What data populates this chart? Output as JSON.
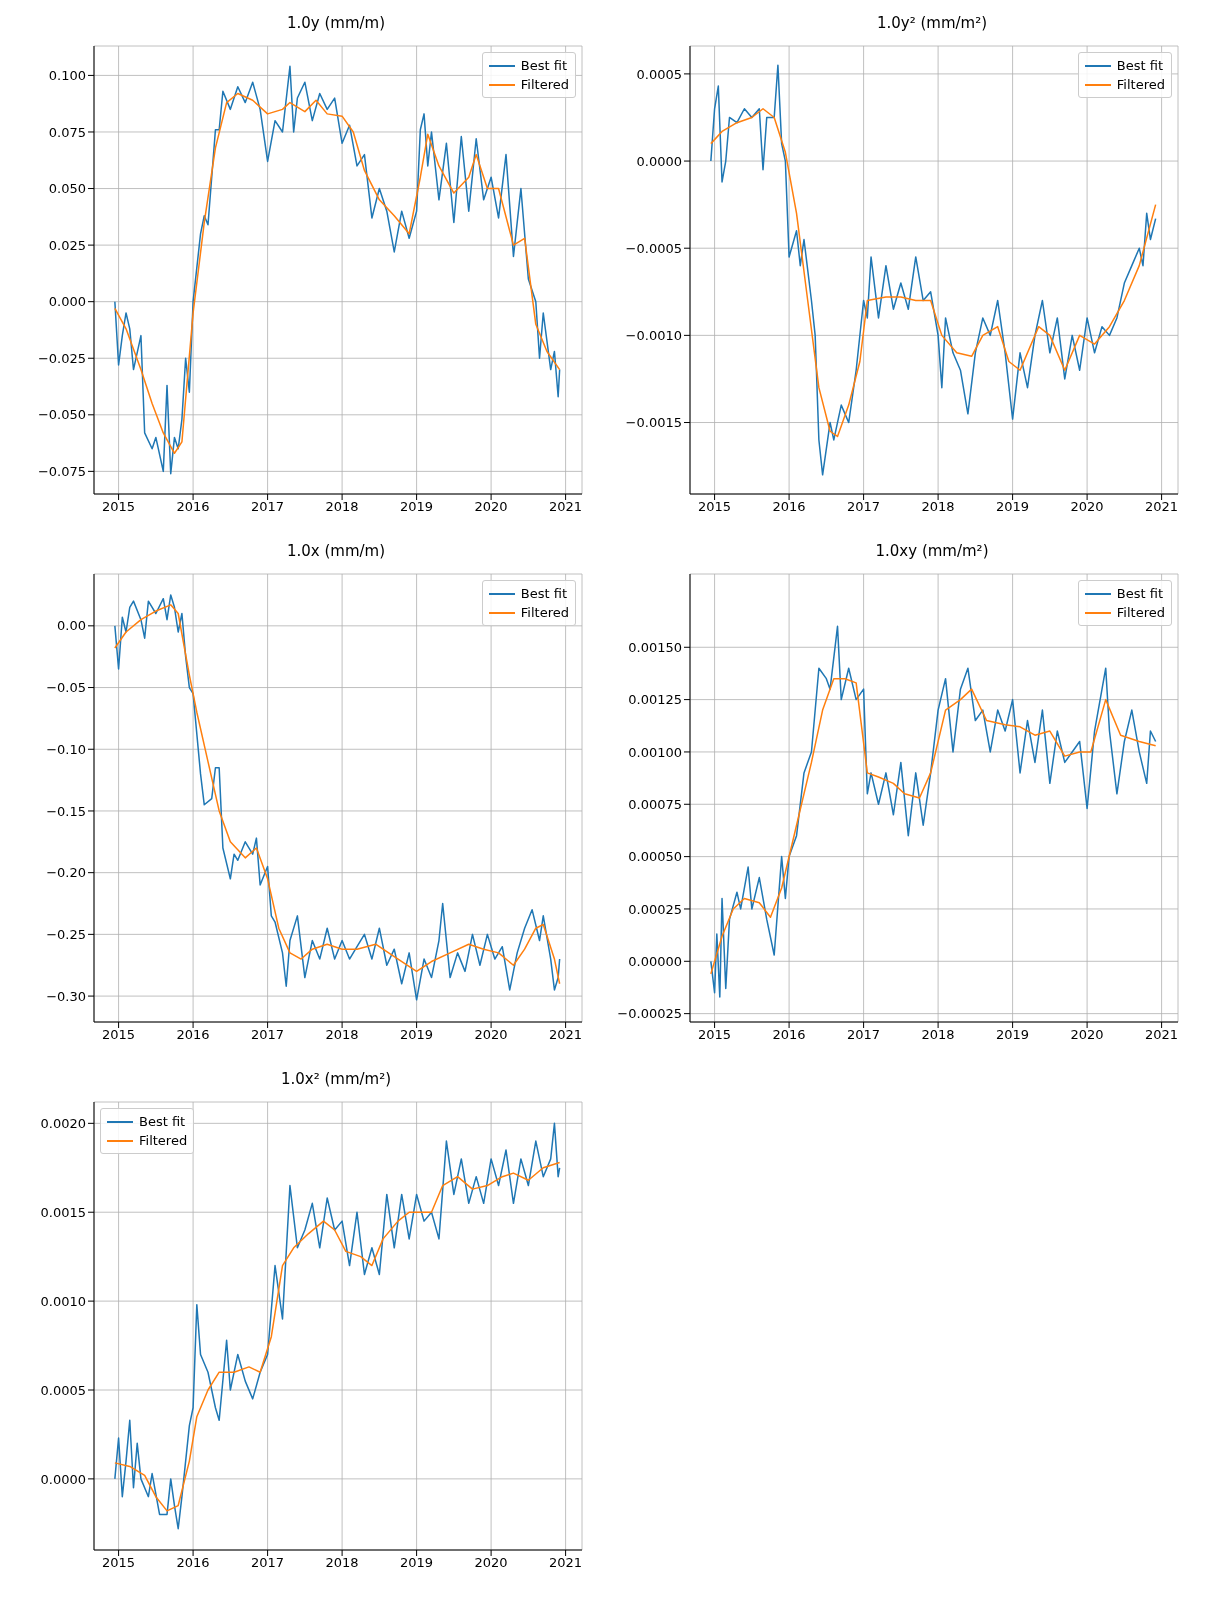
{
  "chart_data": [
    {
      "type": "line",
      "title": "1.0y (mm/m)",
      "xlim": [
        2014.67,
        2021.22
      ],
      "xticks": [
        2015,
        2016,
        2017,
        2018,
        2019,
        2020,
        2021
      ],
      "ylim": [
        -0.085,
        0.113
      ],
      "yticks": [
        {
          "value": -0.075,
          "label": "−0.075"
        },
        {
          "value": -0.05,
          "label": "−0.050"
        },
        {
          "value": -0.025,
          "label": "−0.025"
        },
        {
          "value": 0,
          "label": "0.000"
        },
        {
          "value": 0.025,
          "label": "0.025"
        },
        {
          "value": 0.05,
          "label": "0.050"
        },
        {
          "value": 0.075,
          "label": "0.075"
        },
        {
          "value": 0.1,
          "label": "0.100"
        }
      ],
      "grid": true,
      "legend": "top right",
      "line_style": "solid",
      "marker": "none",
      "series": [
        {
          "name": "Best fit",
          "color": "#1f77b4",
          "x": [
            2014.95,
            2015.0,
            2015.05,
            2015.1,
            2015.15,
            2015.2,
            2015.3,
            2015.35,
            2015.45,
            2015.5,
            2015.6,
            2015.65,
            2015.7,
            2015.75,
            2015.8,
            2015.85,
            2015.9,
            2015.95,
            2016.0,
            2016.1,
            2016.15,
            2016.2,
            2016.3,
            2016.35,
            2016.4,
            2016.5,
            2016.6,
            2016.7,
            2016.8,
            2016.9,
            2017.0,
            2017.1,
            2017.2,
            2017.3,
            2017.35,
            2017.4,
            2017.5,
            2017.6,
            2017.7,
            2017.8,
            2017.9,
            2018.0,
            2018.1,
            2018.2,
            2018.3,
            2018.4,
            2018.5,
            2018.6,
            2018.7,
            2018.8,
            2018.9,
            2019.0,
            2019.05,
            2019.1,
            2019.15,
            2019.2,
            2019.3,
            2019.4,
            2019.5,
            2019.6,
            2019.7,
            2019.8,
            2019.9,
            2020.0,
            2020.1,
            2020.2,
            2020.3,
            2020.4,
            2020.5,
            2020.6,
            2020.65,
            2020.7,
            2020.8,
            2020.85,
            2020.9,
            2020.92
          ],
          "values": [
            0.0,
            -0.028,
            -0.015,
            -0.005,
            -0.012,
            -0.03,
            -0.015,
            -0.058,
            -0.065,
            -0.06,
            -0.075,
            -0.037,
            -0.076,
            -0.06,
            -0.065,
            -0.052,
            -0.025,
            -0.04,
            0.0,
            0.03,
            0.038,
            0.034,
            0.076,
            0.076,
            0.093,
            0.085,
            0.095,
            0.088,
            0.097,
            0.085,
            0.062,
            0.08,
            0.075,
            0.104,
            0.075,
            0.09,
            0.097,
            0.08,
            0.092,
            0.085,
            0.09,
            0.07,
            0.078,
            0.06,
            0.065,
            0.037,
            0.05,
            0.04,
            0.022,
            0.04,
            0.028,
            0.04,
            0.076,
            0.083,
            0.06,
            0.075,
            0.045,
            0.07,
            0.035,
            0.073,
            0.04,
            0.072,
            0.045,
            0.055,
            0.037,
            0.065,
            0.02,
            0.05,
            0.01,
            0.0,
            -0.025,
            -0.005,
            -0.03,
            -0.022,
            -0.042,
            -0.03
          ]
        },
        {
          "name": "Filtered",
          "color": "#ff7f0e",
          "x": [
            2014.95,
            2015.1,
            2015.3,
            2015.45,
            2015.6,
            2015.75,
            2015.85,
            2016.0,
            2016.15,
            2016.3,
            2016.45,
            2016.6,
            2016.8,
            2017.0,
            2017.2,
            2017.3,
            2017.5,
            2017.65,
            2017.8,
            2018.0,
            2018.15,
            2018.3,
            2018.5,
            2018.7,
            2018.9,
            2019.05,
            2019.15,
            2019.3,
            2019.5,
            2019.7,
            2019.8,
            2019.95,
            2020.1,
            2020.3,
            2020.45,
            2020.6,
            2020.75,
            2020.92
          ],
          "values": [
            -0.003,
            -0.012,
            -0.03,
            -0.045,
            -0.058,
            -0.067,
            -0.062,
            -0.005,
            0.035,
            0.068,
            0.088,
            0.092,
            0.089,
            0.083,
            0.085,
            0.088,
            0.084,
            0.089,
            0.083,
            0.082,
            0.075,
            0.058,
            0.045,
            0.038,
            0.03,
            0.055,
            0.074,
            0.06,
            0.048,
            0.055,
            0.065,
            0.05,
            0.05,
            0.025,
            0.028,
            -0.01,
            -0.022,
            -0.03
          ]
        }
      ]
    },
    {
      "type": "line",
      "title": "1.0y² (mm/m²)",
      "xlim": [
        2014.67,
        2021.22
      ],
      "xticks": [
        2015,
        2016,
        2017,
        2018,
        2019,
        2020,
        2021
      ],
      "ylim": [
        -0.00191,
        0.00066
      ],
      "yticks": [
        {
          "value": -0.0015,
          "label": "−0.0015"
        },
        {
          "value": -0.001,
          "label": "−0.0010"
        },
        {
          "value": -0.0005,
          "label": "−0.0005"
        },
        {
          "value": 0,
          "label": "0.0000"
        },
        {
          "value": 0.0005,
          "label": "0.0005"
        }
      ],
      "grid": true,
      "legend": "top right",
      "line_style": "solid",
      "marker": "none",
      "series": [
        {
          "name": "Best fit",
          "color": "#1f77b4",
          "x": [
            2014.95,
            2015.0,
            2015.05,
            2015.1,
            2015.15,
            2015.2,
            2015.3,
            2015.4,
            2015.5,
            2015.6,
            2015.65,
            2015.7,
            2015.8,
            2015.85,
            2015.9,
            2015.95,
            2016.0,
            2016.1,
            2016.15,
            2016.2,
            2016.3,
            2016.35,
            2016.4,
            2016.45,
            2016.55,
            2016.6,
            2016.7,
            2016.8,
            2016.9,
            2017.0,
            2017.05,
            2017.1,
            2017.2,
            2017.3,
            2017.4,
            2017.5,
            2017.6,
            2017.7,
            2017.8,
            2017.9,
            2018.0,
            2018.05,
            2018.1,
            2018.2,
            2018.3,
            2018.4,
            2018.5,
            2018.6,
            2018.7,
            2018.8,
            2018.9,
            2019.0,
            2019.1,
            2019.2,
            2019.3,
            2019.4,
            2019.5,
            2019.6,
            2019.7,
            2019.8,
            2019.9,
            2020.0,
            2020.1,
            2020.2,
            2020.3,
            2020.4,
            2020.5,
            2020.6,
            2020.7,
            2020.75,
            2020.8,
            2020.85,
            2020.92
          ],
          "values": [
            0.0,
            0.0003,
            0.00043,
            -0.00012,
            0.0,
            0.00025,
            0.00022,
            0.0003,
            0.00025,
            0.0003,
            -5e-05,
            0.00025,
            0.00025,
            0.00055,
            0.0001,
            0.0,
            -0.00055,
            -0.0004,
            -0.0006,
            -0.00045,
            -0.0008,
            -0.001,
            -0.0016,
            -0.0018,
            -0.0015,
            -0.0016,
            -0.0014,
            -0.0015,
            -0.0012,
            -0.0008,
            -0.0009,
            -0.00055,
            -0.0009,
            -0.0006,
            -0.00085,
            -0.0007,
            -0.00085,
            -0.00055,
            -0.0008,
            -0.00075,
            -0.001,
            -0.0013,
            -0.0009,
            -0.0011,
            -0.0012,
            -0.00145,
            -0.0011,
            -0.0009,
            -0.001,
            -0.0008,
            -0.0011,
            -0.00148,
            -0.0011,
            -0.0013,
            -0.001,
            -0.0008,
            -0.0011,
            -0.0009,
            -0.00125,
            -0.001,
            -0.0012,
            -0.0009,
            -0.0011,
            -0.00095,
            -0.001,
            -0.0009,
            -0.0007,
            -0.0006,
            -0.0005,
            -0.0006,
            -0.0003,
            -0.00045,
            -0.00033
          ]
        },
        {
          "name": "Filtered",
          "color": "#ff7f0e",
          "x": [
            2014.95,
            2015.1,
            2015.3,
            2015.5,
            2015.65,
            2015.8,
            2015.95,
            2016.1,
            2016.25,
            2016.4,
            2016.55,
            2016.65,
            2016.8,
            2016.95,
            2017.05,
            2017.3,
            2017.5,
            2017.7,
            2017.9,
            2018.05,
            2018.25,
            2018.45,
            2018.6,
            2018.8,
            2018.95,
            2019.1,
            2019.35,
            2019.5,
            2019.7,
            2019.9,
            2020.1,
            2020.3,
            2020.5,
            2020.7,
            2020.92
          ],
          "values": [
            0.0001,
            0.00017,
            0.00022,
            0.00025,
            0.0003,
            0.00025,
            5e-05,
            -0.0003,
            -0.0008,
            -0.0013,
            -0.00155,
            -0.00158,
            -0.0014,
            -0.00115,
            -0.0008,
            -0.00078,
            -0.00078,
            -0.0008,
            -0.0008,
            -0.001,
            -0.0011,
            -0.00112,
            -0.001,
            -0.00095,
            -0.00115,
            -0.0012,
            -0.00095,
            -0.001,
            -0.0012,
            -0.001,
            -0.00105,
            -0.00095,
            -0.0008,
            -0.0006,
            -0.00025
          ]
        }
      ]
    },
    {
      "type": "line",
      "title": "1.0x (mm/m)",
      "xlim": [
        2014.67,
        2021.22
      ],
      "xticks": [
        2015,
        2016,
        2017,
        2018,
        2019,
        2020,
        2021
      ],
      "ylim": [
        -0.321,
        0.042
      ],
      "yticks": [
        {
          "value": -0.3,
          "label": "−0.30"
        },
        {
          "value": -0.25,
          "label": "−0.25"
        },
        {
          "value": -0.2,
          "label": "−0.20"
        },
        {
          "value": -0.15,
          "label": "−0.15"
        },
        {
          "value": -0.1,
          "label": "−0.10"
        },
        {
          "value": -0.05,
          "label": "−0.05"
        },
        {
          "value": 0,
          "label": "0.00"
        }
      ],
      "grid": true,
      "legend": "top right",
      "line_style": "solid",
      "marker": "none",
      "series": [
        {
          "name": "Best fit",
          "color": "#1f77b4",
          "x": [
            2014.95,
            2015.0,
            2015.05,
            2015.1,
            2015.15,
            2015.2,
            2015.3,
            2015.35,
            2015.4,
            2015.5,
            2015.6,
            2015.65,
            2015.7,
            2015.75,
            2015.8,
            2015.85,
            2015.9,
            2015.95,
            2016.0,
            2016.1,
            2016.15,
            2016.25,
            2016.3,
            2016.35,
            2016.4,
            2016.5,
            2016.55,
            2016.6,
            2016.7,
            2016.8,
            2016.85,
            2016.9,
            2017.0,
            2017.05,
            2017.1,
            2017.2,
            2017.25,
            2017.3,
            2017.4,
            2017.5,
            2017.6,
            2017.7,
            2017.8,
            2017.9,
            2018.0,
            2018.1,
            2018.2,
            2018.3,
            2018.4,
            2018.5,
            2018.6,
            2018.7,
            2018.8,
            2018.9,
            2019.0,
            2019.1,
            2019.2,
            2019.3,
            2019.35,
            2019.45,
            2019.55,
            2019.65,
            2019.75,
            2019.85,
            2019.95,
            2020.05,
            2020.15,
            2020.25,
            2020.35,
            2020.45,
            2020.55,
            2020.65,
            2020.7,
            2020.8,
            2020.85,
            2020.9,
            2020.92
          ],
          "values": [
            0.0,
            -0.035,
            0.007,
            -0.005,
            0.015,
            0.02,
            0.005,
            -0.01,
            0.02,
            0.01,
            0.022,
            0.005,
            0.025,
            0.015,
            -0.005,
            0.01,
            -0.025,
            -0.05,
            -0.055,
            -0.12,
            -0.145,
            -0.14,
            -0.115,
            -0.115,
            -0.18,
            -0.205,
            -0.185,
            -0.19,
            -0.175,
            -0.185,
            -0.172,
            -0.21,
            -0.195,
            -0.235,
            -0.24,
            -0.265,
            -0.292,
            -0.255,
            -0.235,
            -0.285,
            -0.255,
            -0.27,
            -0.245,
            -0.27,
            -0.255,
            -0.27,
            -0.26,
            -0.25,
            -0.27,
            -0.245,
            -0.275,
            -0.262,
            -0.29,
            -0.265,
            -0.303,
            -0.27,
            -0.285,
            -0.255,
            -0.225,
            -0.285,
            -0.265,
            -0.28,
            -0.25,
            -0.275,
            -0.25,
            -0.27,
            -0.26,
            -0.295,
            -0.265,
            -0.245,
            -0.23,
            -0.255,
            -0.235,
            -0.27,
            -0.295,
            -0.285,
            -0.27
          ]
        },
        {
          "name": "Filtered",
          "color": "#ff7f0e",
          "x": [
            2014.95,
            2015.1,
            2015.3,
            2015.5,
            2015.7,
            2015.8,
            2015.95,
            2016.05,
            2016.2,
            2016.35,
            2016.5,
            2016.7,
            2016.85,
            2017.0,
            2017.15,
            2017.3,
            2017.45,
            2017.6,
            2017.8,
            2018.0,
            2018.2,
            2018.45,
            2018.7,
            2019.0,
            2019.2,
            2019.45,
            2019.7,
            2019.9,
            2020.1,
            2020.3,
            2020.45,
            2020.6,
            2020.7,
            2020.85,
            2020.92
          ],
          "values": [
            -0.018,
            -0.005,
            0.005,
            0.012,
            0.017,
            0.01,
            -0.04,
            -0.07,
            -0.11,
            -0.15,
            -0.175,
            -0.188,
            -0.18,
            -0.205,
            -0.245,
            -0.265,
            -0.27,
            -0.262,
            -0.258,
            -0.262,
            -0.262,
            -0.258,
            -0.268,
            -0.28,
            -0.272,
            -0.265,
            -0.258,
            -0.262,
            -0.265,
            -0.275,
            -0.262,
            -0.245,
            -0.242,
            -0.27,
            -0.29
          ]
        }
      ]
    },
    {
      "type": "line",
      "title": "1.0xy (mm/m²)",
      "xlim": [
        2014.67,
        2021.22
      ],
      "xticks": [
        2015,
        2016,
        2017,
        2018,
        2019,
        2020,
        2021
      ],
      "ylim": [
        -0.00029,
        0.00185
      ],
      "yticks": [
        {
          "value": -0.00025,
          "label": "−0.00025"
        },
        {
          "value": 0,
          "label": "0.00000"
        },
        {
          "value": 0.00025,
          "label": "0.00025"
        },
        {
          "value": 0.0005,
          "label": "0.00050"
        },
        {
          "value": 0.00075,
          "label": "0.00075"
        },
        {
          "value": 0.001,
          "label": "0.00100"
        },
        {
          "value": 0.00125,
          "label": "0.00125"
        },
        {
          "value": 0.0015,
          "label": "0.00150"
        }
      ],
      "grid": true,
      "legend": "top right",
      "line_style": "solid",
      "marker": "none",
      "series": [
        {
          "name": "Best fit",
          "color": "#1f77b4",
          "x": [
            2014.95,
            2015.0,
            2015.03,
            2015.07,
            2015.1,
            2015.15,
            2015.2,
            2015.3,
            2015.35,
            2015.45,
            2015.5,
            2015.6,
            2015.7,
            2015.8,
            2015.9,
            2015.95,
            2016.0,
            2016.1,
            2016.2,
            2016.3,
            2016.4,
            2016.5,
            2016.55,
            2016.65,
            2016.7,
            2016.8,
            2016.9,
            2017.0,
            2017.05,
            2017.1,
            2017.2,
            2017.3,
            2017.4,
            2017.5,
            2017.6,
            2017.7,
            2017.8,
            2017.9,
            2018.0,
            2018.1,
            2018.2,
            2018.3,
            2018.4,
            2018.5,
            2018.6,
            2018.7,
            2018.8,
            2018.9,
            2019.0,
            2019.1,
            2019.2,
            2019.3,
            2019.4,
            2019.5,
            2019.6,
            2019.7,
            2019.8,
            2019.9,
            2020.0,
            2020.1,
            2020.2,
            2020.25,
            2020.3,
            2020.4,
            2020.5,
            2020.6,
            2020.7,
            2020.8,
            2020.85,
            2020.92
          ],
          "values": [
            0.0,
            -0.00015,
            0.00013,
            -0.00017,
            0.0003,
            -0.00013,
            0.0002,
            0.00033,
            0.00025,
            0.00045,
            0.00025,
            0.0004,
            0.0002,
            3e-05,
            0.0005,
            0.0003,
            0.0005,
            0.0006,
            0.0009,
            0.001,
            0.0014,
            0.00135,
            0.0013,
            0.0016,
            0.00125,
            0.0014,
            0.00125,
            0.0013,
            0.0008,
            0.0009,
            0.00075,
            0.0009,
            0.0007,
            0.00095,
            0.0006,
            0.0009,
            0.00065,
            0.0009,
            0.0012,
            0.00135,
            0.001,
            0.0013,
            0.0014,
            0.00115,
            0.0012,
            0.001,
            0.0012,
            0.0011,
            0.00125,
            0.0009,
            0.00115,
            0.00095,
            0.0012,
            0.00085,
            0.0011,
            0.00095,
            0.001,
            0.00105,
            0.00073,
            0.0011,
            0.0013,
            0.0014,
            0.0011,
            0.0008,
            0.00105,
            0.0012,
            0.001,
            0.00085,
            0.0011,
            0.00105
          ]
        },
        {
          "name": "Filtered",
          "color": "#ff7f0e",
          "x": [
            2014.95,
            2015.1,
            2015.25,
            2015.4,
            2015.6,
            2015.75,
            2015.9,
            2016.1,
            2016.3,
            2016.45,
            2016.6,
            2016.75,
            2016.9,
            2017.05,
            2017.2,
            2017.4,
            2017.55,
            2017.75,
            2017.9,
            2018.1,
            2018.3,
            2018.45,
            2018.65,
            2018.9,
            2019.1,
            2019.3,
            2019.5,
            2019.7,
            2019.9,
            2020.05,
            2020.25,
            2020.45,
            2020.7,
            2020.92
          ],
          "values": [
            -6e-05,
            0.00012,
            0.00025,
            0.0003,
            0.00028,
            0.00021,
            0.00035,
            0.00065,
            0.00095,
            0.0012,
            0.00135,
            0.00135,
            0.00133,
            0.0009,
            0.00088,
            0.00085,
            0.0008,
            0.00078,
            0.0009,
            0.0012,
            0.00125,
            0.0013,
            0.00115,
            0.00113,
            0.00112,
            0.00108,
            0.0011,
            0.00098,
            0.001,
            0.001,
            0.00125,
            0.00108,
            0.00105,
            0.00103
          ]
        }
      ]
    },
    {
      "type": "line",
      "title": "1.0x² (mm/m²)",
      "xlim": [
        2014.67,
        2021.22
      ],
      "xticks": [
        2015,
        2016,
        2017,
        2018,
        2019,
        2020,
        2021
      ],
      "ylim": [
        -0.0004,
        0.00212
      ],
      "yticks": [
        {
          "value": 0,
          "label": "0.0000"
        },
        {
          "value": 0.0005,
          "label": "0.0005"
        },
        {
          "value": 0.001,
          "label": "0.0010"
        },
        {
          "value": 0.0015,
          "label": "0.0015"
        },
        {
          "value": 0.002,
          "label": "0.0020"
        }
      ],
      "grid": true,
      "legend": "top left",
      "line_style": "solid",
      "marker": "none",
      "series": [
        {
          "name": "Best fit",
          "color": "#1f77b4",
          "x": [
            2014.95,
            2015.0,
            2015.05,
            2015.1,
            2015.15,
            2015.2,
            2015.25,
            2015.3,
            2015.4,
            2015.45,
            2015.55,
            2015.65,
            2015.7,
            2015.75,
            2015.8,
            2015.85,
            2015.95,
            2016.0,
            2016.05,
            2016.1,
            2016.2,
            2016.3,
            2016.35,
            2016.45,
            2016.5,
            2016.6,
            2016.7,
            2016.8,
            2016.9,
            2017.0,
            2017.1,
            2017.2,
            2017.3,
            2017.4,
            2017.5,
            2017.6,
            2017.7,
            2017.8,
            2017.9,
            2018.0,
            2018.1,
            2018.2,
            2018.3,
            2018.4,
            2018.5,
            2018.6,
            2018.7,
            2018.8,
            2018.9,
            2019.0,
            2019.1,
            2019.2,
            2019.3,
            2019.4,
            2019.5,
            2019.6,
            2019.7,
            2019.8,
            2019.9,
            2020.0,
            2020.1,
            2020.2,
            2020.3,
            2020.4,
            2020.5,
            2020.6,
            2020.7,
            2020.8,
            2020.85,
            2020.9,
            2020.92
          ],
          "values": [
            0.0,
            0.00023,
            -0.0001,
            0.0001,
            0.00033,
            -5e-05,
            0.0002,
            0.0,
            -0.0001,
            3e-05,
            -0.0002,
            -0.0002,
            0.0,
            -0.00015,
            -0.00028,
            -0.0001,
            0.0003,
            0.0004,
            0.00098,
            0.0007,
            0.0006,
            0.0004,
            0.00033,
            0.00078,
            0.0005,
            0.0007,
            0.00055,
            0.00045,
            0.0006,
            0.0007,
            0.0012,
            0.0009,
            0.00165,
            0.0013,
            0.0014,
            0.00155,
            0.0013,
            0.00158,
            0.0014,
            0.00145,
            0.0012,
            0.0015,
            0.00115,
            0.0013,
            0.00115,
            0.0016,
            0.0013,
            0.0016,
            0.00135,
            0.0016,
            0.00145,
            0.0015,
            0.00135,
            0.0019,
            0.0016,
            0.0018,
            0.00155,
            0.0017,
            0.00155,
            0.0018,
            0.00165,
            0.00185,
            0.00155,
            0.0018,
            0.00165,
            0.0019,
            0.0017,
            0.0018,
            0.002,
            0.0017,
            0.00175
          ]
        },
        {
          "name": "Filtered",
          "color": "#ff7f0e",
          "x": [
            2014.95,
            2015.15,
            2015.35,
            2015.5,
            2015.65,
            2015.8,
            2015.95,
            2016.05,
            2016.2,
            2016.35,
            2016.55,
            2016.75,
            2016.9,
            2017.05,
            2017.2,
            2017.35,
            2017.55,
            2017.75,
            2017.9,
            2018.05,
            2018.25,
            2018.4,
            2018.55,
            2018.75,
            2018.9,
            2019.05,
            2019.2,
            2019.35,
            2019.55,
            2019.75,
            2019.95,
            2020.15,
            2020.3,
            2020.5,
            2020.7,
            2020.92
          ],
          "values": [
            9e-05,
            7e-05,
            2e-05,
            -0.0001,
            -0.00018,
            -0.00015,
            0.0001,
            0.00035,
            0.0005,
            0.0006,
            0.0006,
            0.00063,
            0.0006,
            0.0008,
            0.0012,
            0.0013,
            0.00138,
            0.00145,
            0.0014,
            0.00128,
            0.00125,
            0.0012,
            0.00135,
            0.00145,
            0.0015,
            0.0015,
            0.0015,
            0.00165,
            0.0017,
            0.00163,
            0.00165,
            0.0017,
            0.00172,
            0.00168,
            0.00175,
            0.00178
          ]
        }
      ]
    }
  ]
}
